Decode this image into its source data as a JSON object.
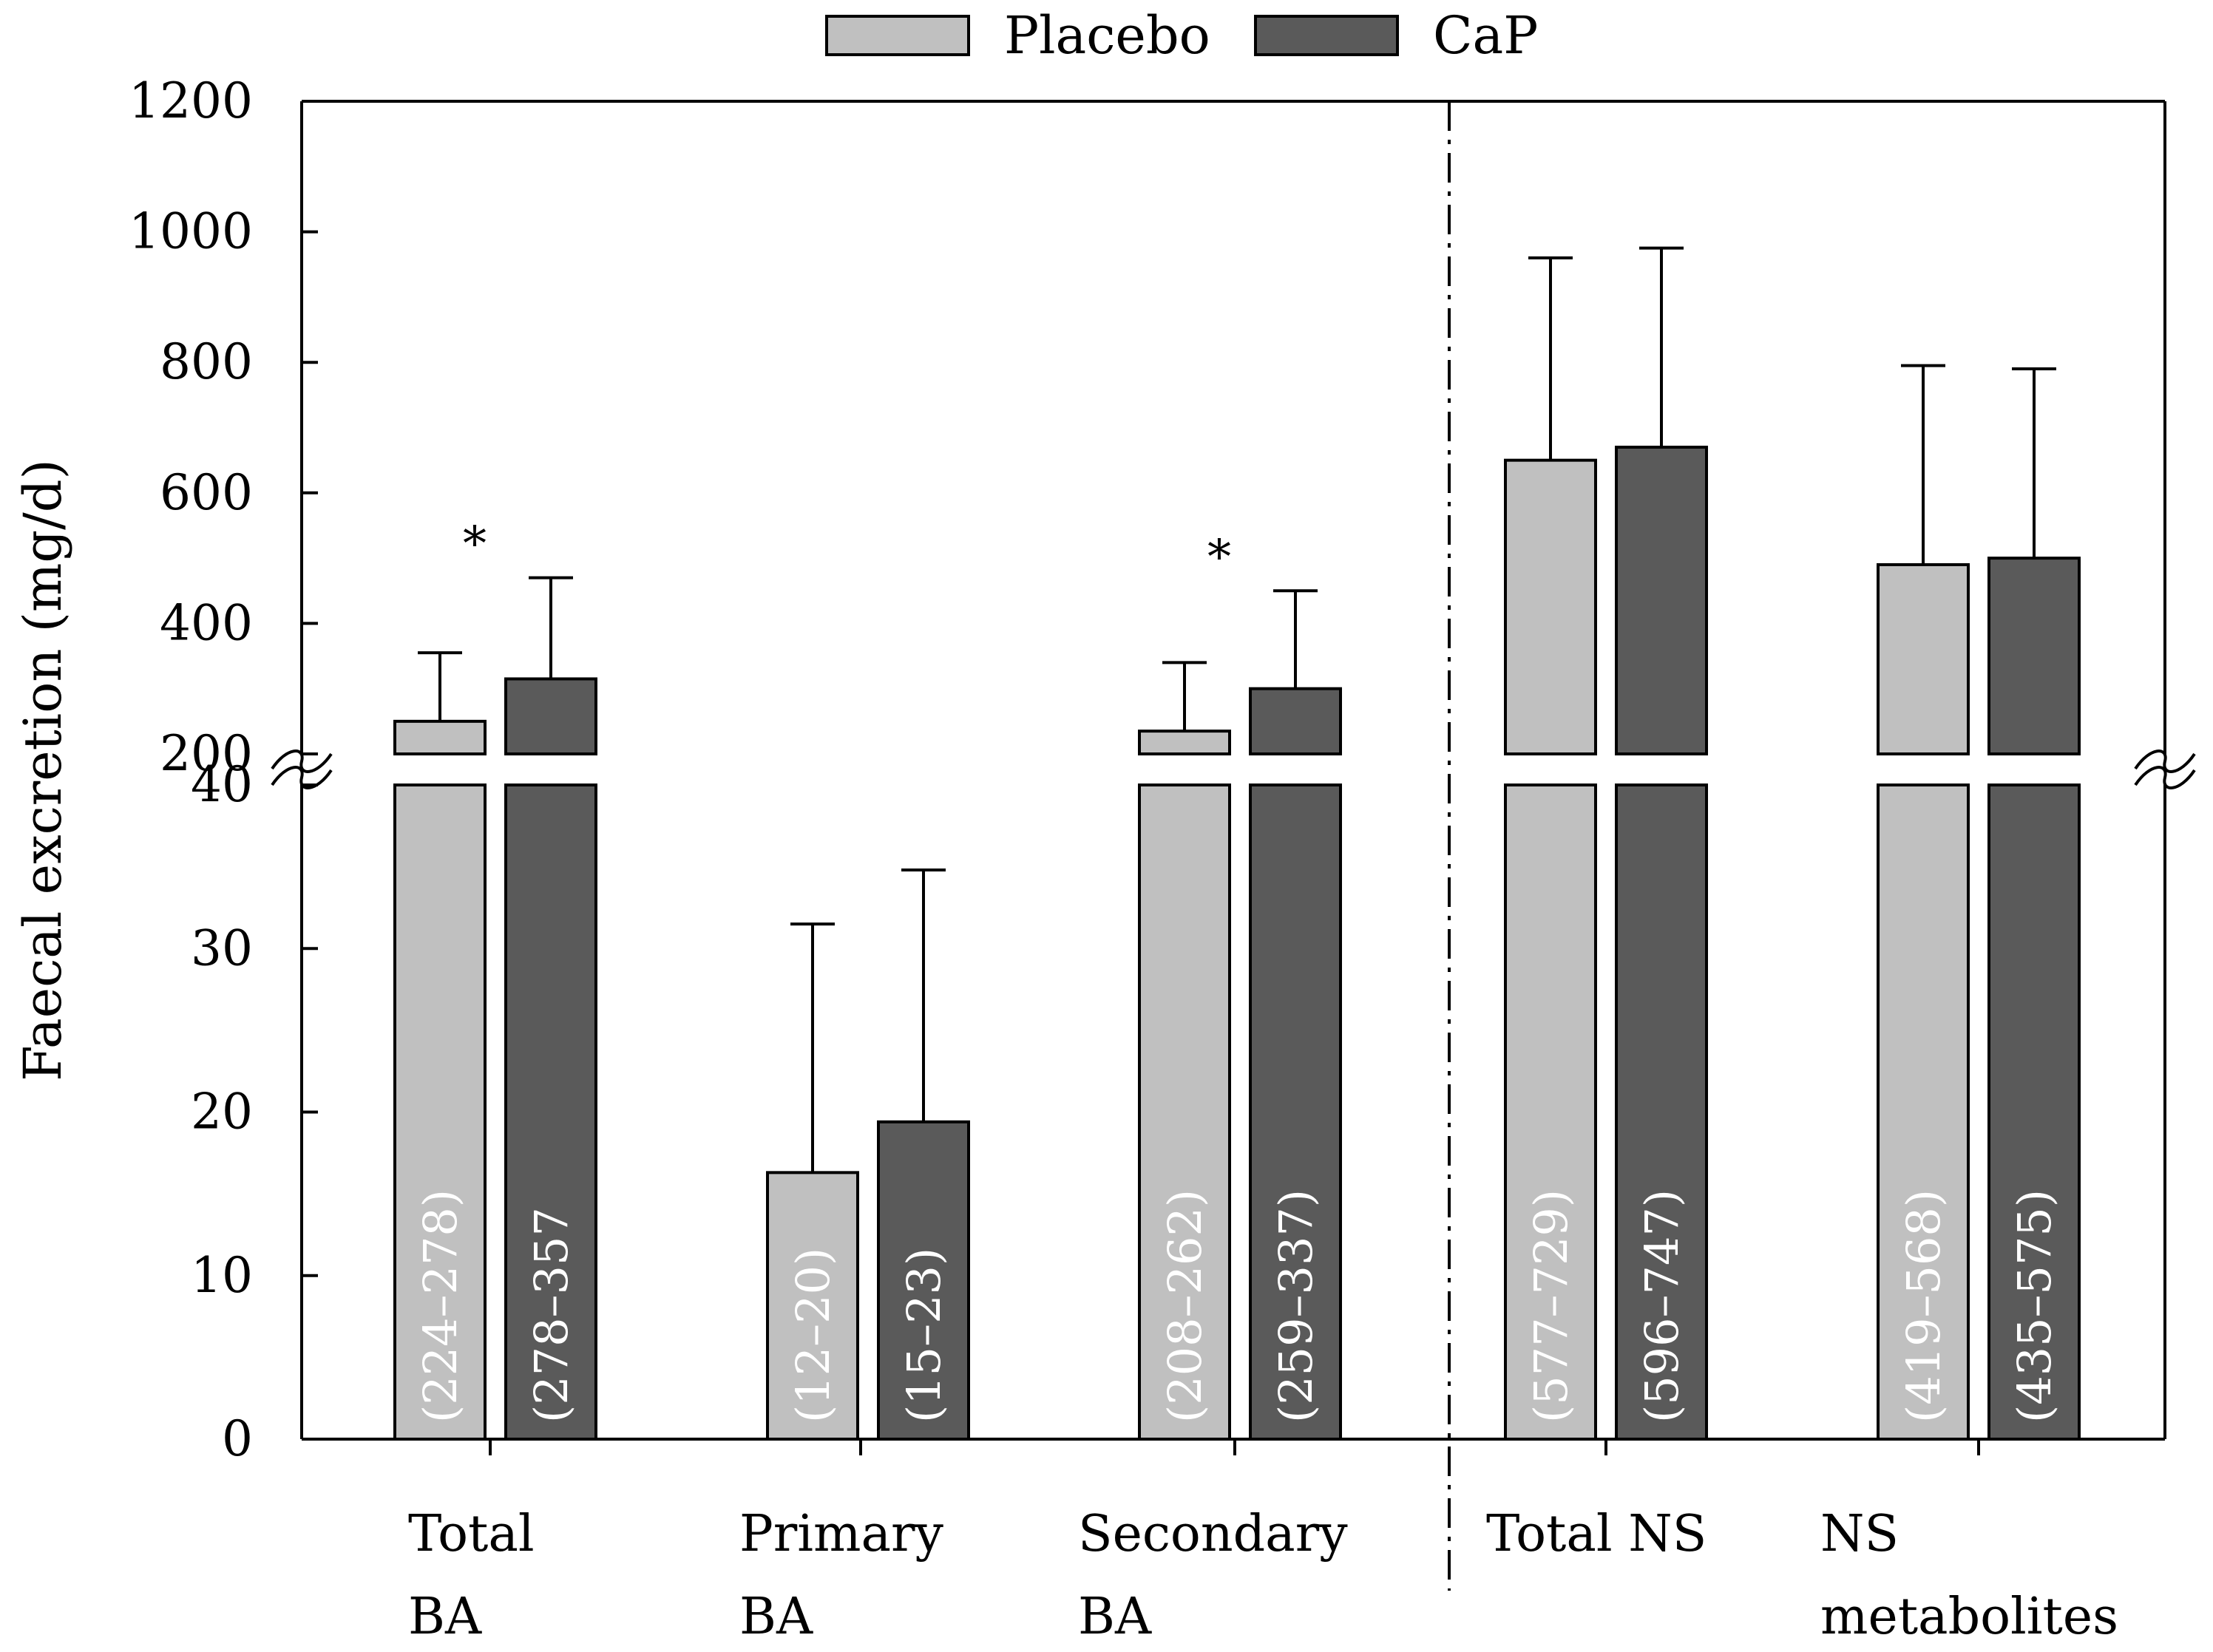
{
  "chart_data": {
    "type": "bar",
    "title": "",
    "xlabel": "",
    "ylabel": "Faecal excretion (mg/d)",
    "legend": {
      "position": "top-center",
      "entries": [
        {
          "name": "Placebo",
          "color": "#c0c0c0"
        },
        {
          "name": "CaP",
          "color": "#5a5a5a"
        }
      ]
    },
    "axis_break": true,
    "ylim_lower": [
      0,
      40
    ],
    "ylim_upper": [
      200,
      1200
    ],
    "yticks_lower": [
      0,
      10,
      20,
      30,
      40
    ],
    "yticks_upper": [
      200,
      400,
      600,
      800,
      1000,
      1200
    ],
    "ytick_labels_lower": [
      "0",
      "10",
      "20",
      "30",
      "40"
    ],
    "ytick_labels_upper": [
      "200",
      "400",
      "600",
      "800",
      "1000",
      "1200"
    ],
    "grid": false,
    "groups": [
      {
        "label_lines": [
          "Total",
          "BA"
        ],
        "significant": true,
        "values": [
          {
            "series": "Placebo",
            "value": 250,
            "err_high": 355,
            "range_label": "(224–278)"
          },
          {
            "series": "CaP",
            "value": 315,
            "err_high": 470,
            "range_label": "(278–357"
          }
        ]
      },
      {
        "label_lines": [
          "Primary",
          "BA"
        ],
        "significant": false,
        "values": [
          {
            "series": "Placebo",
            "value": 16.3,
            "err_high": 31.5,
            "range_label": "(12–20)"
          },
          {
            "series": "CaP",
            "value": 19.4,
            "err_high": 34.8,
            "range_label": "(15–23)"
          }
        ]
      },
      {
        "label_lines": [
          "Secondary",
          "BA"
        ],
        "significant": true,
        "values": [
          {
            "series": "Placebo",
            "value": 235,
            "err_high": 340,
            "range_label": "(208–262)"
          },
          {
            "series": "CaP",
            "value": 300,
            "err_high": 450,
            "range_label": "(259–337)"
          }
        ]
      },
      {
        "label_lines": [
          "Total NS"
        ],
        "significant": false,
        "values": [
          {
            "series": "Placebo",
            "value": 650,
            "err_high": 960,
            "range_label": "(577–729)"
          },
          {
            "series": "CaP",
            "value": 670,
            "err_high": 975,
            "range_label": "(596–747)"
          }
        ]
      },
      {
        "label_lines": [
          "NS",
          "metabolites"
        ],
        "significant": false,
        "values": [
          {
            "series": "Placebo",
            "value": 490,
            "err_high": 795,
            "range_label": "(419–568)"
          },
          {
            "series": "CaP",
            "value": 500,
            "err_high": 790,
            "range_label": "(435–575)"
          }
        ]
      }
    ],
    "significance_marker": "*",
    "vertical_separator_after_group": 3
  }
}
